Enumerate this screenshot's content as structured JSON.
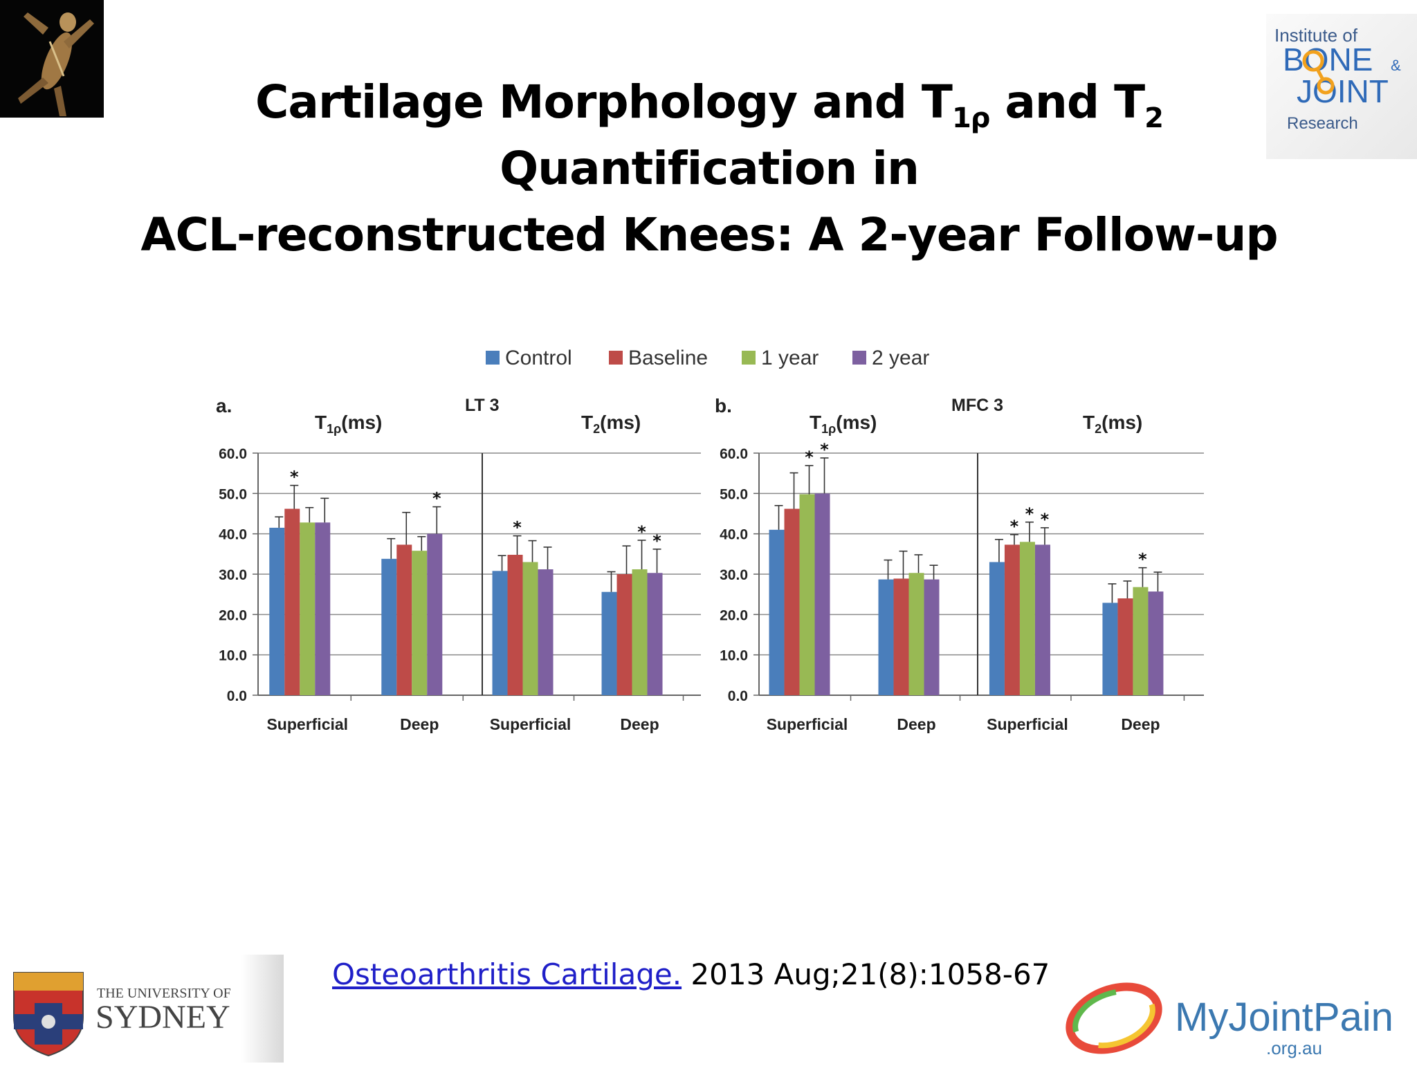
{
  "slide": {
    "title_line1_a": "Cartilage Morphology and T",
    "title_line1_sub1": "1ρ",
    "title_line1_b": " and T",
    "title_line1_sub2": "2",
    "title_line1_c": " Quantification in",
    "title_line2": "ACL-reconstructed Knees: A 2-year Follow-up",
    "citation_link": "Osteoarthritis Cartilage.",
    "citation_rest": " 2013 Aug;21(8):1058-67"
  },
  "logos": {
    "ibjr": {
      "line1": "Institute of",
      "line2": "BONE",
      "amp": "&",
      "line3": "JOINT",
      "line4": "Research"
    },
    "usyd": {
      "line1": "THE UNIVERSITY OF",
      "line2": "SYDNEY"
    },
    "myjointpain": {
      "name": "MyJointPain",
      "domain": ".org.au"
    }
  },
  "colors": {
    "Control": "#4a7ebb",
    "Baseline": "#be4b48",
    "1 year": "#98b954",
    "2 year": "#7d60a0"
  },
  "chart_data": {
    "type": "bar",
    "legend": [
      "Control",
      "Baseline",
      "1 year",
      "2 year"
    ],
    "ylim": [
      0,
      60
    ],
    "yticks": [
      "0.0",
      "10.0",
      "20.0",
      "30.0",
      "40.0",
      "50.0",
      "60.0"
    ],
    "panels": [
      {
        "label": "a.",
        "region": "LT 3",
        "subplots": [
          {
            "title": "T1ρ(ms)",
            "categories": [
              "Superficial",
              "Deep"
            ],
            "series": [
              {
                "name": "Control",
                "values": [
                  41.5,
                  33.8
                ],
                "errors": [
                  2.7,
                  5.0
                ],
                "sig": [
                  false,
                  false
                ]
              },
              {
                "name": "Baseline",
                "values": [
                  46.2,
                  37.3
                ],
                "errors": [
                  5.8,
                  8.0
                ],
                "sig": [
                  true,
                  false
                ]
              },
              {
                "name": "1 year",
                "values": [
                  42.8,
                  35.8
                ],
                "errors": [
                  3.7,
                  3.5
                ],
                "sig": [
                  false,
                  false
                ]
              },
              {
                "name": "2 year",
                "values": [
                  42.8,
                  40.0
                ],
                "errors": [
                  6.0,
                  6.7
                ],
                "sig": [
                  false,
                  true
                ]
              }
            ]
          },
          {
            "title": "T2(ms)",
            "categories": [
              "Superficial",
              "Deep"
            ],
            "series": [
              {
                "name": "Control",
                "values": [
                  30.8,
                  25.6
                ],
                "errors": [
                  3.8,
                  5.0
                ],
                "sig": [
                  false,
                  false
                ]
              },
              {
                "name": "Baseline",
                "values": [
                  34.8,
                  30.0
                ],
                "errors": [
                  4.7,
                  7.0
                ],
                "sig": [
                  true,
                  false
                ]
              },
              {
                "name": "1 year",
                "values": [
                  33.0,
                  31.2
                ],
                "errors": [
                  5.3,
                  7.2
                ],
                "sig": [
                  false,
                  true
                ]
              },
              {
                "name": "2 year",
                "values": [
                  31.2,
                  30.3
                ],
                "errors": [
                  5.5,
                  5.9
                ],
                "sig": [
                  false,
                  true
                ]
              }
            ]
          }
        ]
      },
      {
        "label": "b.",
        "region": "MFC 3",
        "subplots": [
          {
            "title": "T1ρ(ms)",
            "categories": [
              "Superficial",
              "Deep"
            ],
            "series": [
              {
                "name": "Control",
                "values": [
                  41.0,
                  28.7
                ],
                "errors": [
                  6.0,
                  4.8
                ],
                "sig": [
                  false,
                  false
                ]
              },
              {
                "name": "Baseline",
                "values": [
                  46.2,
                  28.9
                ],
                "errors": [
                  8.9,
                  6.8
                ],
                "sig": [
                  false,
                  false
                ]
              },
              {
                "name": "1 year",
                "values": [
                  49.8,
                  30.3
                ],
                "errors": [
                  7.1,
                  4.5
                ],
                "sig": [
                  true,
                  false
                ]
              },
              {
                "name": "2 year",
                "values": [
                  50.0,
                  28.7
                ],
                "errors": [
                  8.8,
                  3.5
                ],
                "sig": [
                  true,
                  false
                ]
              }
            ]
          },
          {
            "title": "T2(ms)",
            "categories": [
              "Superficial",
              "Deep"
            ],
            "series": [
              {
                "name": "Control",
                "values": [
                  33.0,
                  22.9
                ],
                "errors": [
                  5.6,
                  4.7
                ],
                "sig": [
                  false,
                  false
                ]
              },
              {
                "name": "Baseline",
                "values": [
                  37.3,
                  24.0
                ],
                "errors": [
                  2.5,
                  4.3
                ],
                "sig": [
                  true,
                  false
                ]
              },
              {
                "name": "1 year",
                "values": [
                  38.0,
                  26.8
                ],
                "errors": [
                  4.9,
                  4.8
                ],
                "sig": [
                  true,
                  true
                ]
              },
              {
                "name": "2 year",
                "values": [
                  37.3,
                  25.7
                ],
                "errors": [
                  4.2,
                  4.8
                ],
                "sig": [
                  true,
                  false
                ]
              }
            ]
          }
        ]
      }
    ],
    "grid": true
  }
}
